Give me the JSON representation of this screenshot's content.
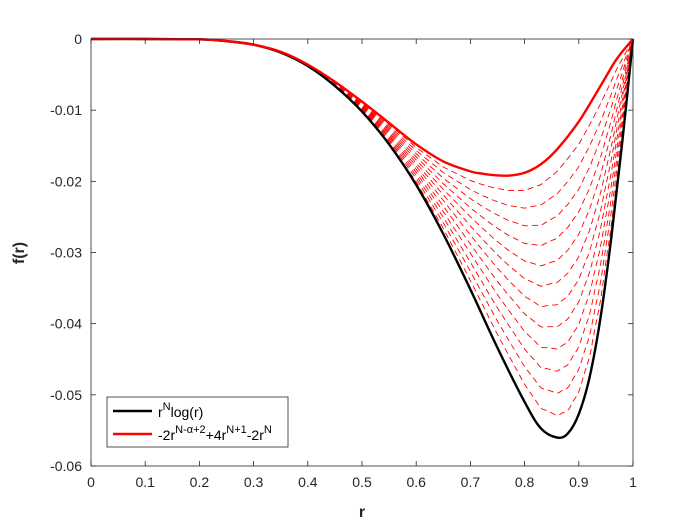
{
  "chart_data": {
    "type": "line",
    "xlabel": "r",
    "ylabel": "f(r)",
    "xlim": [
      0,
      1
    ],
    "ylim": [
      -0.06,
      0
    ],
    "xticks": [
      0,
      0.1,
      0.2,
      0.3,
      0.4,
      0.5,
      0.6,
      0.7,
      0.8,
      0.9,
      1
    ],
    "xtick_labels": [
      "0",
      "0.1",
      "0.2",
      "0.3",
      "0.4",
      "0.5",
      "0.6",
      "0.7",
      "0.8",
      "0.9",
      "1"
    ],
    "yticks": [
      0,
      -0.01,
      -0.02,
      -0.03,
      -0.04,
      -0.05,
      -0.06
    ],
    "ytick_labels": [
      "0",
      "-0.01",
      "-0.02",
      "-0.03",
      "-0.04",
      "-0.05",
      "-0.06"
    ],
    "grid": false,
    "legend_position": "bottom-left",
    "legend": [
      {
        "base": "r",
        "sup": "N",
        "tail": "log(r)",
        "color": "#000000"
      },
      {
        "parts": [
          {
            "t": "-2r",
            "sup": false
          },
          {
            "t": "N-α+2",
            "sup": true
          },
          {
            "t": "+4r",
            "sup": false
          },
          {
            "t": "N+1",
            "sup": true
          },
          {
            "t": "-2r",
            "sup": false
          },
          {
            "t": "N",
            "sup": true
          }
        ],
        "color": "#ff0000"
      }
    ],
    "series": [
      {
        "style": "solid",
        "color": "#000000",
        "x": [
          0,
          0.1,
          0.2,
          0.25,
          0.3,
          0.35,
          0.4,
          0.45,
          0.5,
          0.55,
          0.6,
          0.65,
          0.7,
          0.75,
          0.8,
          0.83,
          0.86,
          0.88,
          0.9,
          0.92,
          0.94,
          0.96,
          0.98,
          1
        ],
        "y": [
          0,
          0,
          -5e-05,
          -0.0003,
          -0.0008,
          -0.0019,
          -0.0038,
          -0.0066,
          -0.0102,
          -0.0148,
          -0.0205,
          -0.0274,
          -0.0352,
          -0.0434,
          -0.051,
          -0.0547,
          -0.056,
          -0.0554,
          -0.0527,
          -0.0475,
          -0.0392,
          -0.0279,
          -0.0146,
          0
        ]
      },
      {
        "style": "solid",
        "color": "#ff0000",
        "x": [
          0,
          0.1,
          0.2,
          0.25,
          0.3,
          0.35,
          0.4,
          0.45,
          0.5,
          0.55,
          0.6,
          0.65,
          0.7,
          0.72,
          0.74,
          0.77,
          0.8,
          0.83,
          0.86,
          0.9,
          0.94,
          0.97,
          1
        ],
        "y": [
          0,
          0,
          -5e-05,
          -0.0003,
          -0.0008,
          -0.0018,
          -0.0036,
          -0.006,
          -0.0088,
          -0.0118,
          -0.0148,
          -0.0172,
          -0.0186,
          -0.0189,
          -0.0191,
          -0.0192,
          -0.0188,
          -0.0176,
          -0.0155,
          -0.0116,
          -0.0066,
          -0.0028,
          0
        ]
      }
    ],
    "dashed_family": {
      "style": "dashed",
      "color": "#ff0000",
      "count": 12,
      "note_levels": [
        -0.0222,
        -0.0252,
        -0.0282,
        -0.0312,
        -0.0342,
        -0.0372,
        -0.0402,
        -0.0432,
        -0.0462,
        -0.0492,
        -0.0522,
        -0.0546
      ]
    }
  }
}
